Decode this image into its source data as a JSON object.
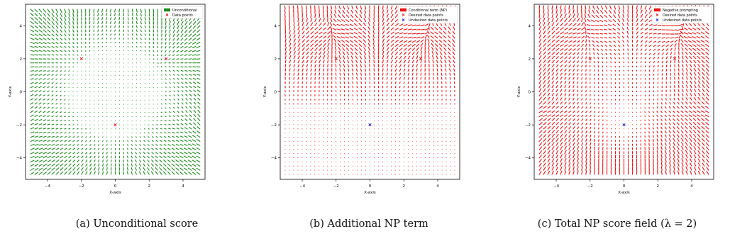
{
  "chart_data": [
    {
      "type": "quiver",
      "caption": "(a) Unconditional score",
      "xlabel": "X-axis",
      "ylabel": "Y-axis",
      "xlim": [
        -5.3,
        5.3
      ],
      "ylim": [
        -5.3,
        5.3
      ],
      "xticks": [
        -4,
        -2,
        0,
        2,
        4
      ],
      "yticks": [
        -4,
        -2,
        0,
        2,
        4
      ],
      "grid": false,
      "legend_position": "top-right",
      "field": "unconditional",
      "grid_range": [
        -5,
        5
      ],
      "grid_points": 41,
      "series": [
        {
          "name": "Unconditional",
          "kind": "arrows",
          "color": "#1a8a1a"
        },
        {
          "name": "Data points",
          "kind": "markers",
          "marker": "x",
          "color": "#e41a1c",
          "points": [
            {
              "x": -2,
              "y": 2
            },
            {
              "x": 3,
              "y": 2
            },
            {
              "x": 0,
              "y": -2
            }
          ]
        }
      ]
    },
    {
      "type": "quiver",
      "caption": "(b) Additional NP term",
      "xlabel": "X-axis",
      "ylabel": "Y-axis",
      "xlim": [
        -5.3,
        5.3
      ],
      "ylim": [
        -5.3,
        5.3
      ],
      "xticks": [
        -4,
        -2,
        0,
        2,
        4
      ],
      "yticks": [
        -4,
        -2,
        0,
        2,
        4
      ],
      "grid": false,
      "legend_position": "top-right",
      "field": "np_term",
      "grid_range": [
        -5,
        5
      ],
      "grid_points": 41,
      "series": [
        {
          "name": "Conditional term (NP)",
          "kind": "arrows",
          "color": "#ee1111"
        },
        {
          "name": "Desired data points",
          "kind": "markers",
          "marker": "x",
          "color": "#e41a1c",
          "points": [
            {
              "x": -2,
              "y": 2
            },
            {
              "x": 3,
              "y": 2
            }
          ]
        },
        {
          "name": "Undesired data points",
          "kind": "markers",
          "marker": "x",
          "color": "#1a1aee",
          "points": [
            {
              "x": 0,
              "y": -2
            }
          ]
        }
      ]
    },
    {
      "type": "quiver",
      "caption": "(c) Total NP score field (λ = 2)",
      "xlabel": "X-axis",
      "ylabel": "Y-axis",
      "xlim": [
        -5.3,
        5.3
      ],
      "ylim": [
        -5.3,
        5.3
      ],
      "xticks": [
        -4,
        -2,
        0,
        2,
        4
      ],
      "yticks": [
        -4,
        -2,
        0,
        2,
        4
      ],
      "grid": false,
      "legend_position": "top-right",
      "field": "total",
      "lambda": 2,
      "grid_range": [
        -5,
        5
      ],
      "grid_points": 41,
      "series": [
        {
          "name": "Negative prompting",
          "kind": "arrows",
          "color": "#ee1111"
        },
        {
          "name": "Desired data points",
          "kind": "markers",
          "marker": "x",
          "color": "#e41a1c",
          "points": [
            {
              "x": -2,
              "y": 2
            },
            {
              "x": 3,
              "y": 2
            }
          ]
        },
        {
          "name": "Undesired data points",
          "kind": "markers",
          "marker": "x",
          "color": "#1a1aee",
          "points": [
            {
              "x": 0,
              "y": -2
            }
          ]
        }
      ]
    }
  ]
}
